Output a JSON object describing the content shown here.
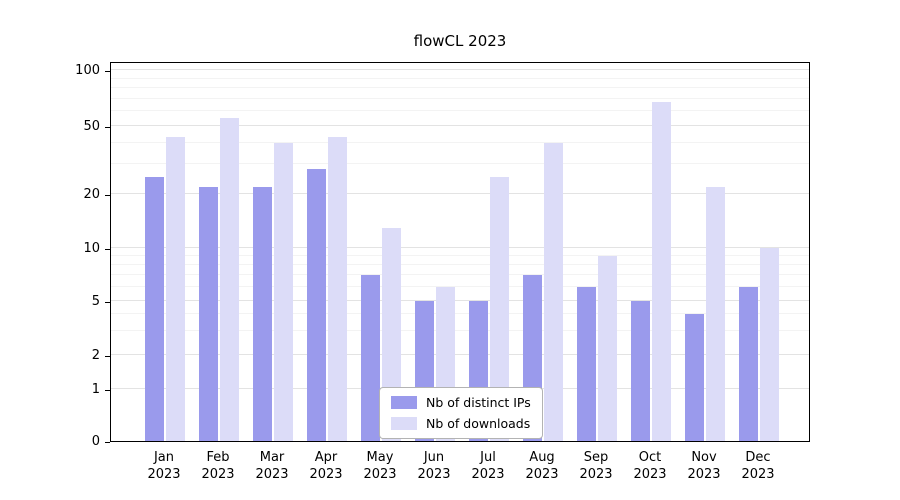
{
  "chart_data": {
    "type": "bar",
    "title": "flowCL 2023",
    "categories": [
      "Jan",
      "Feb",
      "Mar",
      "Apr",
      "May",
      "Jun",
      "Jul",
      "Aug",
      "Sep",
      "Oct",
      "Nov",
      "Dec"
    ],
    "year_label": "2023",
    "series": [
      {
        "name": "Nb of distinct IPs",
        "color": "#9a9aec",
        "values": [
          25,
          22,
          22,
          28,
          7,
          5,
          5,
          7,
          6,
          5,
          4,
          6
        ]
      },
      {
        "name": "Nb of downloads",
        "color": "#dcdcf8",
        "values": [
          43,
          55,
          40,
          43,
          13,
          6,
          25,
          40,
          9,
          67,
          22,
          10
        ]
      }
    ],
    "yticks": [
      0,
      1,
      2,
      5,
      10,
      20,
      50,
      100
    ],
    "ylim": [
      0,
      100
    ],
    "scale": "symlog",
    "grid": "horizontal major and minor",
    "legend_position": "inside bottom-center"
  }
}
